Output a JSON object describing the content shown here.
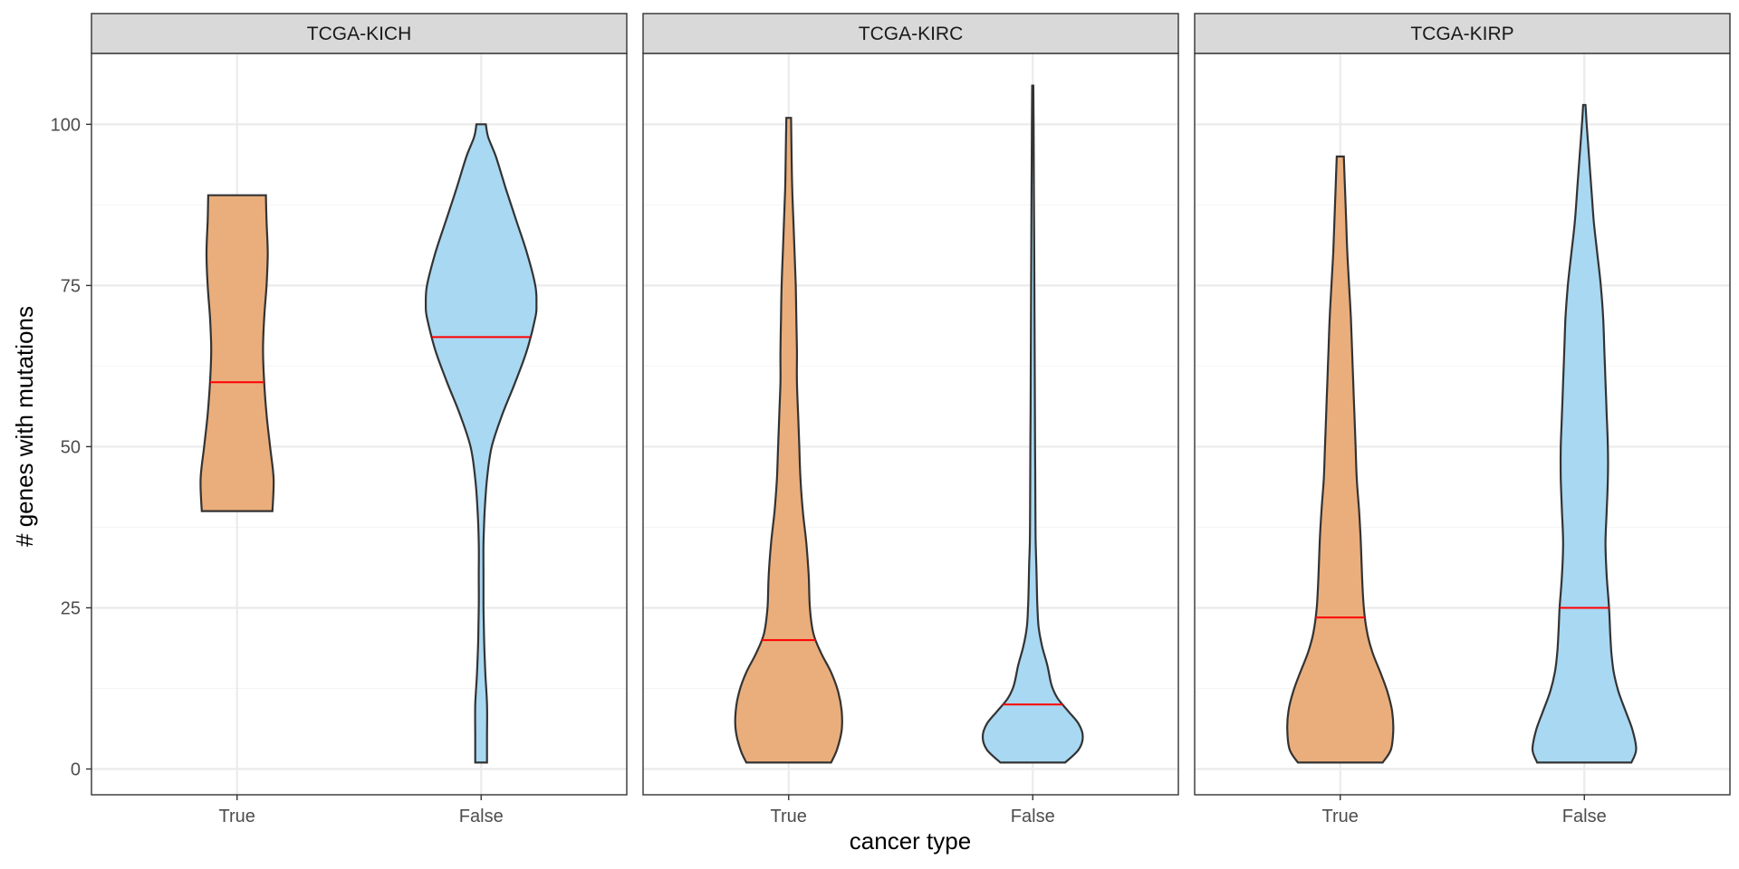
{
  "chart_data": {
    "type": "violin",
    "xlabel": "cancer type",
    "ylabel": "# genes with mutations",
    "ylim": [
      -4,
      111
    ],
    "yticks": [
      0,
      25,
      50,
      75,
      100
    ],
    "categories": [
      "True",
      "False"
    ],
    "grid": true,
    "colors": {
      "True": "#eaae7c",
      "False": "#a9d8f2",
      "median": "#ff0000",
      "outline": "#333333",
      "strip": "#d9d9d9",
      "grid": "#ebebeb"
    },
    "panels": [
      {
        "title": "TCGA-KICH",
        "violins": [
          {
            "category": "True",
            "median": 60,
            "min": 40,
            "max": 89,
            "profile": [
              [
                40,
                0.6
              ],
              [
                45,
                0.62
              ],
              [
                50,
                0.56
              ],
              [
                55,
                0.5
              ],
              [
                60,
                0.46
              ],
              [
                65,
                0.44
              ],
              [
                70,
                0.46
              ],
              [
                75,
                0.5
              ],
              [
                80,
                0.52
              ],
              [
                85,
                0.5
              ],
              [
                89,
                0.49
              ]
            ]
          },
          {
            "category": "False",
            "median": 67,
            "min": 1,
            "max": 100,
            "profile": [
              [
                1,
                0.1
              ],
              [
                5,
                0.1
              ],
              [
                10,
                0.1
              ],
              [
                15,
                0.07
              ],
              [
                20,
                0.05
              ],
              [
                25,
                0.04
              ],
              [
                30,
                0.04
              ],
              [
                35,
                0.04
              ],
              [
                40,
                0.06
              ],
              [
                45,
                0.1
              ],
              [
                50,
                0.18
              ],
              [
                55,
                0.36
              ],
              [
                60,
                0.58
              ],
              [
                65,
                0.78
              ],
              [
                70,
                0.92
              ],
              [
                72,
                0.94
              ],
              [
                75,
                0.92
              ],
              [
                80,
                0.78
              ],
              [
                85,
                0.6
              ],
              [
                90,
                0.42
              ],
              [
                95,
                0.25
              ],
              [
                98,
                0.12
              ],
              [
                100,
                0.08
              ]
            ]
          }
        ]
      },
      {
        "title": "TCGA-KIRC",
        "violins": [
          {
            "category": "True",
            "median": 20,
            "min": 1,
            "max": 101,
            "profile": [
              [
                1,
                0.72
              ],
              [
                3,
                0.82
              ],
              [
                6,
                0.9
              ],
              [
                9,
                0.9
              ],
              [
                12,
                0.84
              ],
              [
                15,
                0.72
              ],
              [
                18,
                0.55
              ],
              [
                21,
                0.42
              ],
              [
                25,
                0.36
              ],
              [
                30,
                0.34
              ],
              [
                35,
                0.3
              ],
              [
                40,
                0.24
              ],
              [
                45,
                0.2
              ],
              [
                50,
                0.18
              ],
              [
                55,
                0.16
              ],
              [
                60,
                0.14
              ],
              [
                65,
                0.14
              ],
              [
                70,
                0.13
              ],
              [
                75,
                0.12
              ],
              [
                80,
                0.1
              ],
              [
                85,
                0.08
              ],
              [
                90,
                0.06
              ],
              [
                95,
                0.05
              ],
              [
                101,
                0.04
              ]
            ]
          },
          {
            "category": "False",
            "median": 10,
            "min": 1,
            "max": 106,
            "profile": [
              [
                1,
                0.55
              ],
              [
                3,
                0.78
              ],
              [
                5,
                0.85
              ],
              [
                7,
                0.78
              ],
              [
                9,
                0.6
              ],
              [
                11,
                0.42
              ],
              [
                13,
                0.32
              ],
              [
                16,
                0.25
              ],
              [
                19,
                0.16
              ],
              [
                22,
                0.1
              ],
              [
                25,
                0.08
              ],
              [
                28,
                0.07
              ],
              [
                32,
                0.06
              ],
              [
                35,
                0.05
              ],
              [
                40,
                0.045
              ],
              [
                50,
                0.04
              ],
              [
                60,
                0.035
              ],
              [
                70,
                0.03
              ],
              [
                80,
                0.025
              ],
              [
                90,
                0.02
              ],
              [
                100,
                0.015
              ],
              [
                106,
                0.01
              ]
            ]
          }
        ]
      },
      {
        "title": "TCGA-KIRP",
        "violins": [
          {
            "category": "True",
            "median": 23.5,
            "min": 1,
            "max": 95,
            "profile": [
              [
                1,
                0.72
              ],
              [
                3,
                0.86
              ],
              [
                6,
                0.9
              ],
              [
                9,
                0.88
              ],
              [
                12,
                0.8
              ],
              [
                15,
                0.68
              ],
              [
                18,
                0.55
              ],
              [
                21,
                0.46
              ],
              [
                25,
                0.4
              ],
              [
                30,
                0.37
              ],
              [
                35,
                0.35
              ],
              [
                40,
                0.32
              ],
              [
                45,
                0.28
              ],
              [
                50,
                0.26
              ],
              [
                55,
                0.24
              ],
              [
                60,
                0.22
              ],
              [
                65,
                0.2
              ],
              [
                70,
                0.18
              ],
              [
                75,
                0.15
              ],
              [
                80,
                0.12
              ],
              [
                85,
                0.1
              ],
              [
                90,
                0.08
              ],
              [
                95,
                0.06
              ]
            ]
          },
          {
            "category": "False",
            "median": 25,
            "min": 1,
            "max": 103,
            "profile": [
              [
                1,
                0.8
              ],
              [
                3,
                0.88
              ],
              [
                6,
                0.82
              ],
              [
                9,
                0.7
              ],
              [
                12,
                0.58
              ],
              [
                15,
                0.5
              ],
              [
                18,
                0.46
              ],
              [
                21,
                0.44
              ],
              [
                25,
                0.42
              ],
              [
                30,
                0.38
              ],
              [
                35,
                0.36
              ],
              [
                40,
                0.38
              ],
              [
                45,
                0.4
              ],
              [
                50,
                0.4
              ],
              [
                55,
                0.38
              ],
              [
                60,
                0.36
              ],
              [
                65,
                0.34
              ],
              [
                70,
                0.32
              ],
              [
                75,
                0.28
              ],
              [
                80,
                0.22
              ],
              [
                85,
                0.16
              ],
              [
                90,
                0.12
              ],
              [
                95,
                0.08
              ],
              [
                100,
                0.04
              ],
              [
                103,
                0.02
              ]
            ]
          }
        ]
      }
    ]
  }
}
